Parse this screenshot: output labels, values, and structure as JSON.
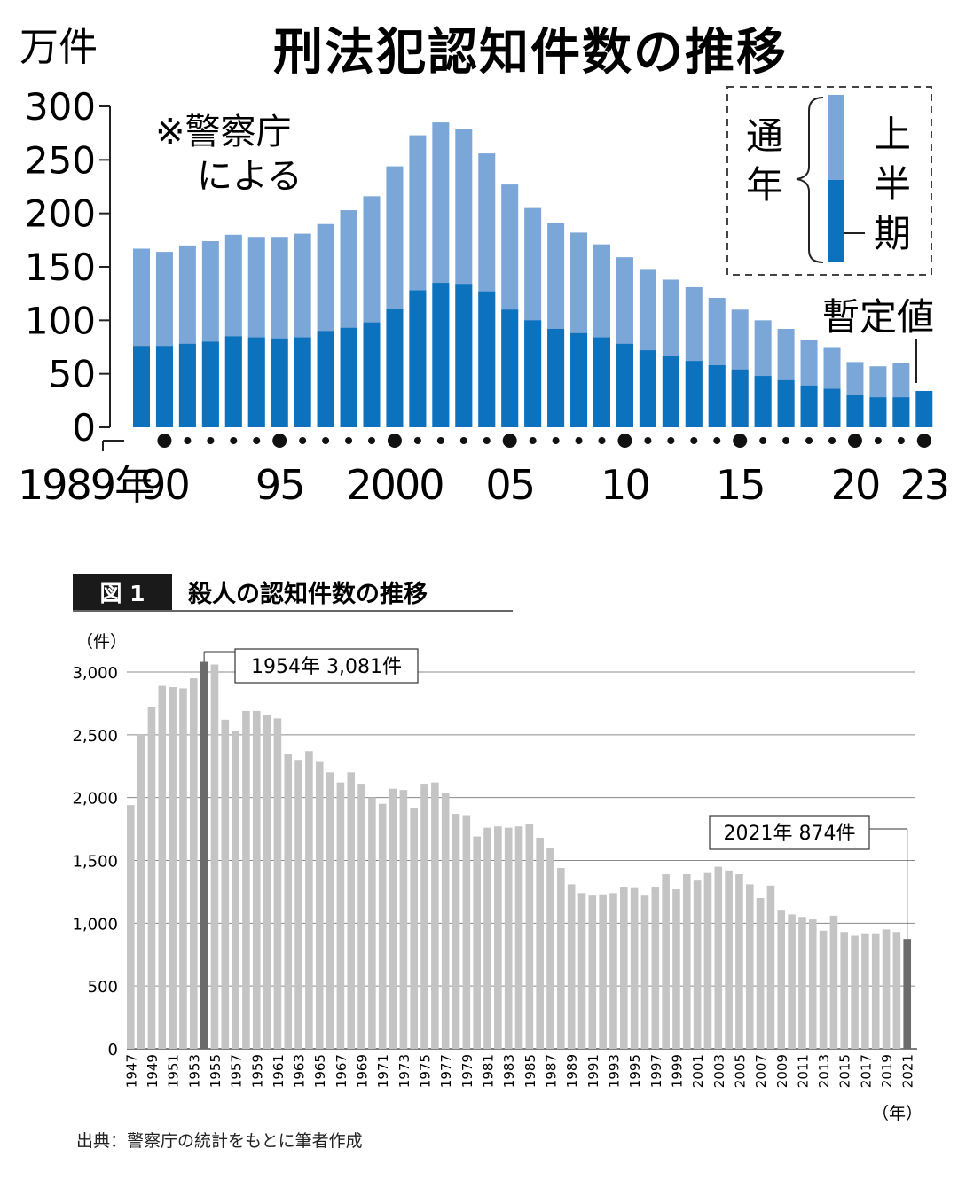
{
  "chart_data": [
    {
      "type": "bar",
      "title": "刑法犯認知件数の推移",
      "unit_label": "万件",
      "note_line1": "※警察庁",
      "note_line2": "による",
      "ylim": [
        0,
        300
      ],
      "yticks": [
        0,
        50,
        100,
        150,
        200,
        250,
        300
      ],
      "x": [
        1989,
        1990,
        1991,
        1992,
        1993,
        1994,
        1995,
        1996,
        1997,
        1998,
        1999,
        2000,
        2001,
        2002,
        2003,
        2004,
        2005,
        2006,
        2007,
        2008,
        2009,
        2010,
        2011,
        2012,
        2013,
        2014,
        2015,
        2016,
        2017,
        2018,
        2019,
        2020,
        2021,
        2022,
        2023
      ],
      "xtick_labels": [
        {
          "x": 1989,
          "label": "1989年"
        },
        {
          "x": 1990,
          "label": "90"
        },
        {
          "x": 1995,
          "label": "95"
        },
        {
          "x": 2000,
          "label": "2000"
        },
        {
          "x": 2005,
          "label": "05"
        },
        {
          "x": 2010,
          "label": "10"
        },
        {
          "x": 2015,
          "label": "15"
        },
        {
          "x": 2020,
          "label": "20"
        },
        {
          "x": 2023,
          "label": "23"
        }
      ],
      "series": [
        {
          "name": "通年",
          "color": "#7aa6d8",
          "values": [
            167,
            164,
            170,
            174,
            180,
            178,
            178,
            181,
            190,
            203,
            216,
            244,
            273,
            285,
            279,
            256,
            227,
            205,
            191,
            182,
            171,
            159,
            148,
            138,
            131,
            121,
            110,
            100,
            92,
            82,
            75,
            61,
            57,
            60,
            null
          ]
        },
        {
          "name": "上半期",
          "color": "#0c72bd",
          "values": [
            76,
            76,
            78,
            80,
            85,
            84,
            83,
            84,
            90,
            93,
            98,
            111,
            128,
            135,
            134,
            127,
            110,
            100,
            92,
            88,
            84,
            78,
            72,
            67,
            62,
            58,
            54,
            48,
            44,
            39,
            36,
            30,
            28,
            28,
            34
          ]
        }
      ],
      "legend": {
        "label_annual": "通年",
        "label_half": "上半期"
      },
      "provisional_label": "暫定値"
    },
    {
      "type": "bar",
      "figure_label": "図 1",
      "title": "殺人の認知件数の推移",
      "y_unit": "（件）",
      "x_unit": "（年）",
      "ylim": [
        0,
        3000
      ],
      "yticks": [
        {
          "value": 0,
          "label": "0"
        },
        {
          "value": 500,
          "label": "500"
        },
        {
          "value": 1000,
          "label": "1,000"
        },
        {
          "value": 1500,
          "label": "1,500"
        },
        {
          "value": 2000,
          "label": "2,000"
        },
        {
          "value": 2500,
          "label": "2,500"
        },
        {
          "value": 3000,
          "label": "3,000"
        }
      ],
      "x": [
        1947,
        1948,
        1949,
        1950,
        1951,
        1952,
        1953,
        1954,
        1955,
        1956,
        1957,
        1958,
        1959,
        1960,
        1961,
        1962,
        1963,
        1964,
        1965,
        1966,
        1967,
        1968,
        1969,
        1970,
        1971,
        1972,
        1973,
        1974,
        1975,
        1976,
        1977,
        1978,
        1979,
        1980,
        1981,
        1982,
        1983,
        1984,
        1985,
        1986,
        1987,
        1988,
        1989,
        1990,
        1991,
        1992,
        1993,
        1994,
        1995,
        1996,
        1997,
        1998,
        1999,
        2000,
        2001,
        2002,
        2003,
        2004,
        2005,
        2006,
        2007,
        2008,
        2009,
        2010,
        2011,
        2012,
        2013,
        2014,
        2015,
        2016,
        2017,
        2018,
        2019,
        2020,
        2021
      ],
      "xtick_labels": [
        "1947",
        "1949",
        "1951",
        "1953",
        "1955",
        "1957",
        "1959",
        "1961",
        "1963",
        "1965",
        "1967",
        "1969",
        "1971",
        "1973",
        "1975",
        "1977",
        "1979",
        "1981",
        "1983",
        "1985",
        "1987",
        "1989",
        "1991",
        "1993",
        "1995",
        "1997",
        "1999",
        "2001",
        "2003",
        "2005",
        "2007",
        "2009",
        "2011",
        "2013",
        "2015",
        "2017",
        "2019",
        "2021"
      ],
      "values": [
        1940,
        2500,
        2720,
        2890,
        2880,
        2870,
        2950,
        3081,
        3060,
        2620,
        2530,
        2690,
        2690,
        2660,
        2630,
        2350,
        2300,
        2370,
        2290,
        2200,
        2120,
        2200,
        2110,
        2000,
        1950,
        2070,
        2060,
        1920,
        2110,
        2120,
        2040,
        1870,
        1860,
        1690,
        1760,
        1770,
        1760,
        1770,
        1790,
        1680,
        1600,
        1440,
        1310,
        1240,
        1220,
        1230,
        1240,
        1290,
        1280,
        1220,
        1290,
        1390,
        1270,
        1390,
        1340,
        1400,
        1450,
        1420,
        1390,
        1310,
        1200,
        1300,
        1100,
        1070,
        1050,
        1030,
        940,
        1060,
        930,
        900,
        920,
        920,
        950,
        930,
        874
      ],
      "bar_color": "#c4c4c4",
      "highlight_color": "#6b6b6b",
      "highlight_years": [
        1954,
        2021
      ],
      "annotations": [
        {
          "x": 1954,
          "label": "1954年 3,081件"
        },
        {
          "x": 2021,
          "label": "2021年 874件"
        }
      ]
    }
  ],
  "source_note": "出典：警察庁の統計をもとに筆者作成"
}
